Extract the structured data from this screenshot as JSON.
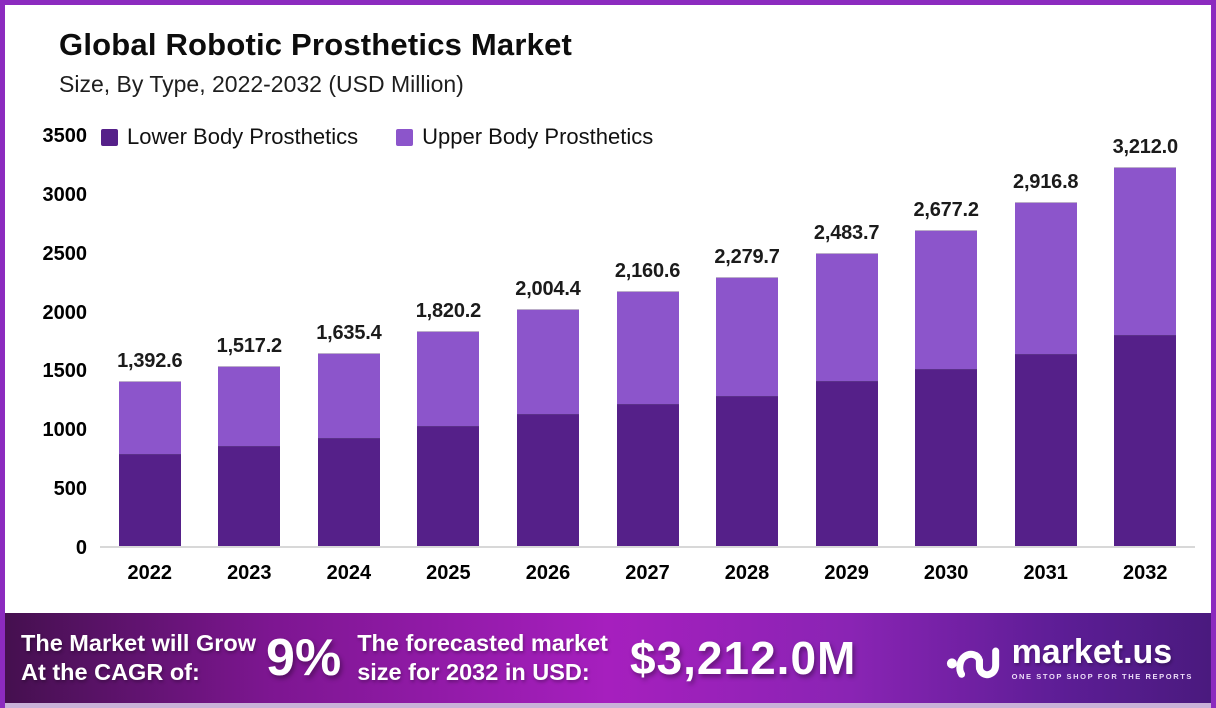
{
  "header": {
    "title": "Global Robotic Prosthetics Market",
    "subtitle": "Size, By Type, 2022-2032 (USD Million)"
  },
  "chart_data": {
    "type": "bar",
    "stacked": true,
    "title": "Global Robotic Prosthetics Market",
    "subtitle": "Size, By Type, 2022-2032 (USD Million)",
    "categories": [
      "2022",
      "2023",
      "2024",
      "2025",
      "2026",
      "2027",
      "2028",
      "2029",
      "2030",
      "2031",
      "2032"
    ],
    "totals": [
      1392.6,
      1517.2,
      1635.4,
      1820.2,
      2004.4,
      2160.6,
      2279.7,
      2483.7,
      2677.2,
      2916.8,
      3212.0
    ],
    "total_labels": [
      "1,392.6",
      "1,517.2",
      "1,635.4",
      "1,820.2",
      "2,004.4",
      "2,160.6",
      "2,279.7",
      "2,483.7",
      "2,677.2",
      "2,916.8",
      "3,212.0"
    ],
    "series": [
      {
        "name": "Lower Body Prosthetics",
        "color": "#552089",
        "values": [
          773.0,
          842.0,
          908.0,
          1010.0,
          1112.0,
          1199.0,
          1265.0,
          1393.0,
          1492.0,
          1622.0,
          1783.0
        ]
      },
      {
        "name": "Upper Body Prosthetics",
        "color": "#8c55cb",
        "values": [
          619.6,
          675.2,
          727.4,
          810.2,
          892.4,
          961.6,
          1014.7,
          1090.7,
          1185.2,
          1294.8,
          1429.0
        ]
      }
    ],
    "ylabel": "",
    "xlabel": "",
    "ylim": [
      0,
      3500
    ],
    "yticks": [
      0,
      500,
      1000,
      1500,
      2000,
      2500,
      3000,
      3500
    ],
    "grid": false,
    "legend_position": "top-left",
    "value_labels": "total-above-bar"
  },
  "footer": {
    "cagr_label_line1": "The Market will Grow",
    "cagr_label_line2": "At the CAGR of:",
    "cagr_value": "9%",
    "forecast_label_line1": "The forecasted market",
    "forecast_label_line2": "size for 2032 in USD:",
    "forecast_value": "$3,212.0M",
    "brand_name": "market.us",
    "brand_tagline": "ONE STOP SHOP FOR THE REPORTS"
  },
  "colors": {
    "frame_border": "#8c2bbf",
    "lower_body_bar": "#552089",
    "upper_body_bar": "#8c55cb",
    "axis_line": "#d8d8d8",
    "footer_gradient_left": "#45104f",
    "footer_gradient_center": "#a61fbe",
    "footer_gradient_right": "#4a1a7e",
    "bottom_strip": "#c9b2d8",
    "text_dark": "#0d0d0d",
    "text_light": "#ffffff"
  }
}
